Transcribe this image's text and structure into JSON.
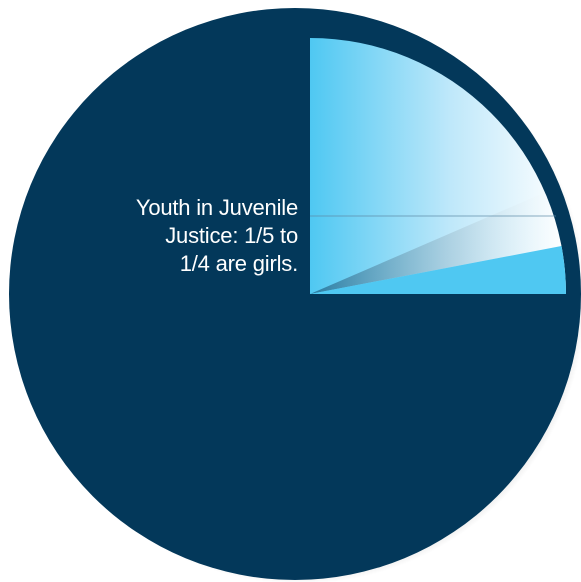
{
  "chart_data": {
    "type": "pie",
    "annotation": [
      "Youth in Juvenile",
      "Justice: 1/5 to",
      "1/4 are girls."
    ],
    "slices": [
      {
        "fraction_low": 0.2,
        "fraction_high": 0.25,
        "color": "#4fc8f2"
      },
      {
        "fraction_remaining": 0.75,
        "color": "#03385a"
      }
    ]
  },
  "colors": {
    "background": "#ffffff",
    "pie_main": "#03385a",
    "highlight": "#4fc8f2",
    "highlight_light": "#ffffff"
  }
}
